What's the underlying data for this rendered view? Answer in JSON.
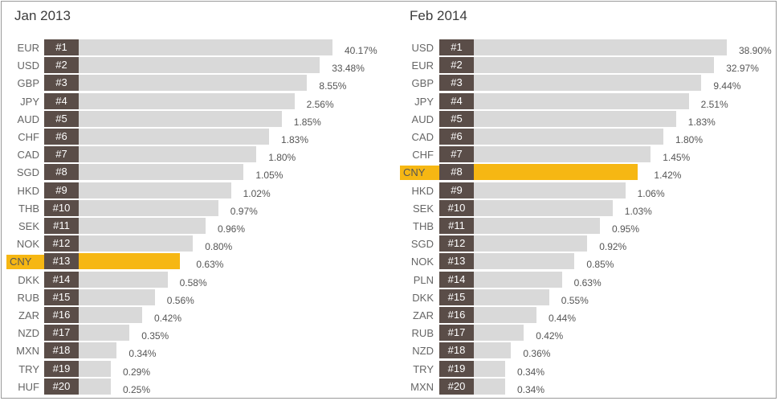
{
  "chart_data": [
    {
      "type": "bar",
      "orientation": "horizontal",
      "title": "Jan 2013",
      "value_unit": "%",
      "highlight": "CNY",
      "highlight_color": "#f6b713",
      "bar_color": "#d9d9d9",
      "rank_color": "#5a4d48",
      "rows": [
        {
          "code": "EUR",
          "rank": "#1",
          "value": 40.17,
          "label": "40.17%"
        },
        {
          "code": "USD",
          "rank": "#2",
          "value": 33.48,
          "label": "33.48%"
        },
        {
          "code": "GBP",
          "rank": "#3",
          "value": 8.55,
          "label": "8.55%"
        },
        {
          "code": "JPY",
          "rank": "#4",
          "value": 2.56,
          "label": "2.56%"
        },
        {
          "code": "AUD",
          "rank": "#5",
          "value": 1.85,
          "label": "1.85%"
        },
        {
          "code": "CHF",
          "rank": "#6",
          "value": 1.83,
          "label": "1.83%"
        },
        {
          "code": "CAD",
          "rank": "#7",
          "value": 1.8,
          "label": "1.80%"
        },
        {
          "code": "SGD",
          "rank": "#8",
          "value": 1.05,
          "label": "1.05%"
        },
        {
          "code": "HKD",
          "rank": "#9",
          "value": 1.02,
          "label": "1.02%"
        },
        {
          "code": "THB",
          "rank": "#10",
          "value": 0.97,
          "label": "0.97%"
        },
        {
          "code": "SEK",
          "rank": "#11",
          "value": 0.96,
          "label": "0.96%"
        },
        {
          "code": "NOK",
          "rank": "#12",
          "value": 0.8,
          "label": "0.80%"
        },
        {
          "code": "CNY",
          "rank": "#13",
          "value": 0.63,
          "label": "0.63%"
        },
        {
          "code": "DKK",
          "rank": "#14",
          "value": 0.58,
          "label": "0.58%"
        },
        {
          "code": "RUB",
          "rank": "#15",
          "value": 0.56,
          "label": "0.56%"
        },
        {
          "code": "ZAR",
          "rank": "#16",
          "value": 0.42,
          "label": "0.42%"
        },
        {
          "code": "NZD",
          "rank": "#17",
          "value": 0.35,
          "label": "0.35%"
        },
        {
          "code": "MXN",
          "rank": "#18",
          "value": 0.34,
          "label": "0.34%"
        },
        {
          "code": "TRY",
          "rank": "#19",
          "value": 0.29,
          "label": "0.29%"
        },
        {
          "code": "HUF",
          "rank": "#20",
          "value": 0.25,
          "label": "0.25%"
        }
      ]
    },
    {
      "type": "bar",
      "orientation": "horizontal",
      "title": "Feb 2014",
      "value_unit": "%",
      "highlight": "CNY",
      "highlight_color": "#f6b713",
      "bar_color": "#d9d9d9",
      "rank_color": "#5a4d48",
      "rows": [
        {
          "code": "USD",
          "rank": "#1",
          "value": 38.9,
          "label": "38.90%"
        },
        {
          "code": "EUR",
          "rank": "#2",
          "value": 32.97,
          "label": "32.97%"
        },
        {
          "code": "GBP",
          "rank": "#3",
          "value": 9.44,
          "label": "9.44%"
        },
        {
          "code": "JPY",
          "rank": "#4",
          "value": 2.51,
          "label": "2.51%"
        },
        {
          "code": "AUD",
          "rank": "#5",
          "value": 1.83,
          "label": "1.83%"
        },
        {
          "code": "CAD",
          "rank": "#6",
          "value": 1.8,
          "label": "1.80%"
        },
        {
          "code": "CHF",
          "rank": "#7",
          "value": 1.45,
          "label": "1.45%"
        },
        {
          "code": "CNY",
          "rank": "#8",
          "value": 1.42,
          "label": "1.42%"
        },
        {
          "code": "HKD",
          "rank": "#9",
          "value": 1.06,
          "label": "1.06%"
        },
        {
          "code": "SEK",
          "rank": "#10",
          "value": 1.03,
          "label": "1.03%"
        },
        {
          "code": "THB",
          "rank": "#11",
          "value": 0.95,
          "label": "0.95%"
        },
        {
          "code": "SGD",
          "rank": "#12",
          "value": 0.92,
          "label": "0.92%"
        },
        {
          "code": "NOK",
          "rank": "#13",
          "value": 0.85,
          "label": "0.85%"
        },
        {
          "code": "PLN",
          "rank": "#14",
          "value": 0.63,
          "label": "0.63%"
        },
        {
          "code": "DKK",
          "rank": "#15",
          "value": 0.55,
          "label": "0.55%"
        },
        {
          "code": "ZAR",
          "rank": "#16",
          "value": 0.44,
          "label": "0.44%"
        },
        {
          "code": "RUB",
          "rank": "#17",
          "value": 0.42,
          "label": "0.42%"
        },
        {
          "code": "NZD",
          "rank": "#18",
          "value": 0.36,
          "label": "0.36%"
        },
        {
          "code": "TRY",
          "rank": "#19",
          "value": 0.34,
          "label": "0.34%"
        },
        {
          "code": "MXN",
          "rank": "#20",
          "value": 0.34,
          "label": "0.34%"
        }
      ]
    }
  ]
}
